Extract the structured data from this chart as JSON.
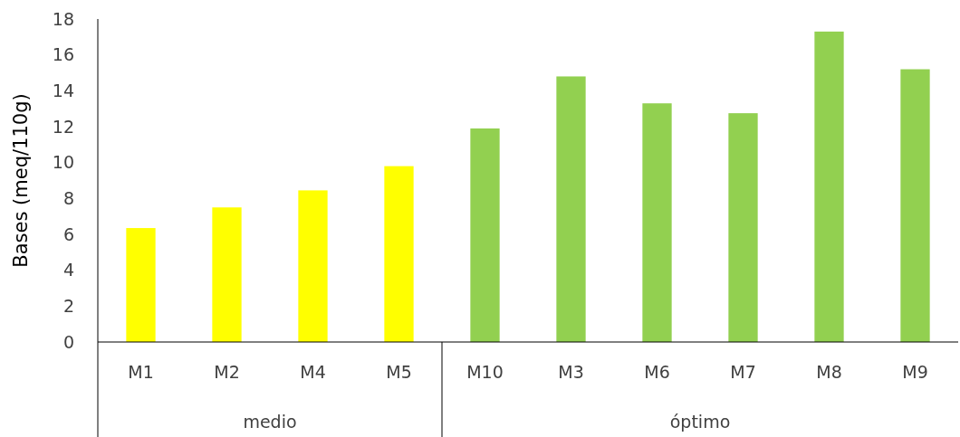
{
  "chart_data": {
    "type": "bar",
    "ylabel": "Bases (meq/110g)",
    "categories": [
      "M1",
      "M2",
      "M4",
      "M5",
      "M10",
      "M3",
      "M6",
      "M7",
      "M8",
      "M9"
    ],
    "values": [
      6.35,
      7.5,
      8.45,
      9.8,
      11.9,
      14.8,
      13.3,
      12.75,
      17.3,
      15.2
    ],
    "colors": [
      "#ffff00",
      "#ffff00",
      "#ffff00",
      "#ffff00",
      "#92d050",
      "#92d050",
      "#92d050",
      "#92d050",
      "#92d050",
      "#92d050"
    ],
    "ylim": [
      0,
      18
    ],
    "yticks": [
      0,
      2,
      4,
      6,
      8,
      10,
      12,
      14,
      16,
      18
    ],
    "grid": false,
    "annotations": [
      "medio",
      "óptimo"
    ]
  }
}
